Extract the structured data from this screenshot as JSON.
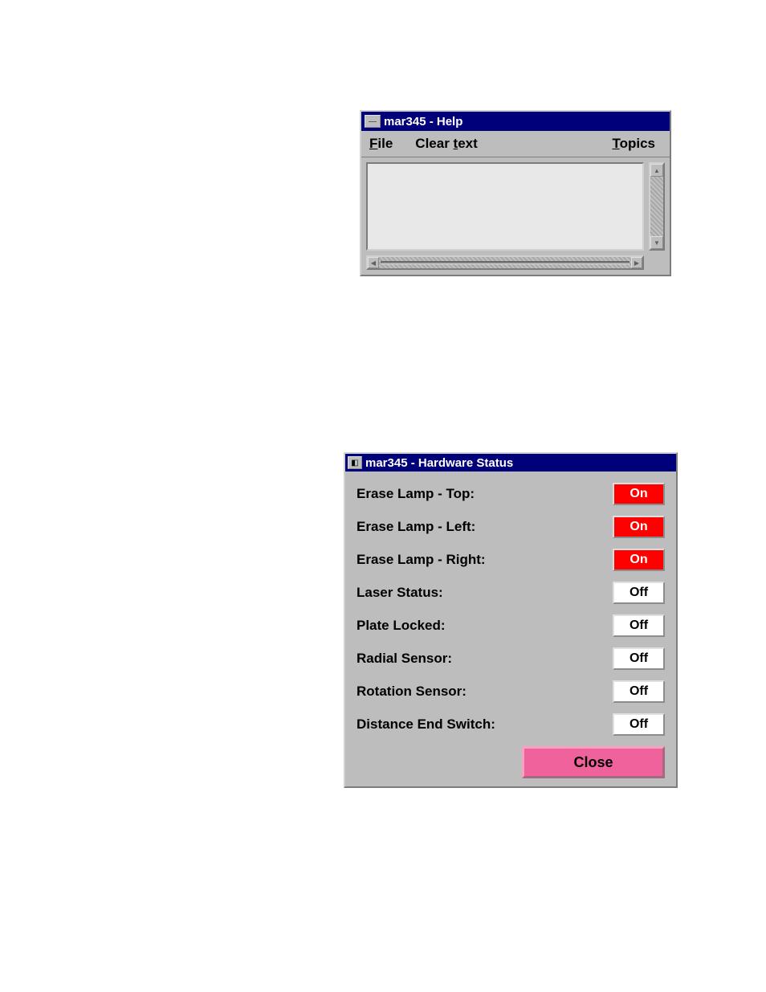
{
  "help_window": {
    "title": "mar345 - Help",
    "menu": {
      "file": "File",
      "clear_text": "Clear text",
      "topics": "Topics"
    },
    "text_content": "",
    "colors": {
      "titlebar_bg": "#00007b",
      "titlebar_text": "#ffffff",
      "window_bg": "#bdbdbd",
      "textarea_bg": "#e8e8e8"
    }
  },
  "hardware_window": {
    "title": "mar345 - Hardware Status",
    "rows": [
      {
        "label": "Erase Lamp - Top:",
        "value": "On",
        "on": true
      },
      {
        "label": "Erase Lamp - Left:",
        "value": "On",
        "on": true
      },
      {
        "label": "Erase Lamp - Right:",
        "value": "On",
        "on": true
      },
      {
        "label": "Laser Status:",
        "value": "Off",
        "on": false
      },
      {
        "label": "Plate Locked:",
        "value": "Off",
        "on": false
      },
      {
        "label": "Radial Sensor:",
        "value": "Off",
        "on": false
      },
      {
        "label": "Rotation Sensor:",
        "value": "Off",
        "on": false
      },
      {
        "label": "Distance End Switch:",
        "value": "Off",
        "on": false
      }
    ],
    "close_label": "Close",
    "colors": {
      "titlebar_bg": "#00007b",
      "titlebar_text": "#ffffff",
      "window_bg": "#bdbdbd",
      "on_bg": "#ff0000",
      "on_text": "#ffffff",
      "off_bg": "#ffffff",
      "off_text": "#000000",
      "close_bg": "#f0629c"
    }
  }
}
